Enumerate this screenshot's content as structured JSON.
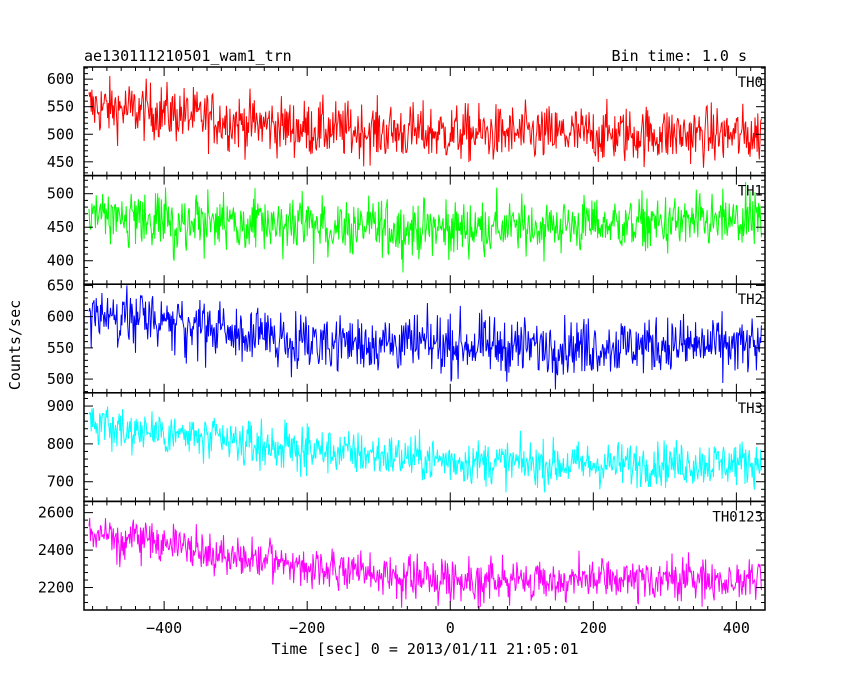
{
  "header": {
    "left": "ae130111210501_wam1_trn",
    "right": "Bin time: 1.0 s"
  },
  "chart_data": {
    "type": "line",
    "title": "ae130111210501_wam1_trn",
    "subtitle": "Bin time: 1.0 s",
    "xlabel": "Time [sec] 0 = 2013/01/11 21:05:01",
    "ylabel": "Counts/sec",
    "xlim": [
      -512,
      440
    ],
    "x_ticks": [
      -400,
      -200,
      0,
      200,
      400
    ],
    "x_tick_labels": [
      "−400",
      "−200",
      "0",
      "200",
      "400"
    ],
    "x_data_range": [
      -505,
      435
    ],
    "bin_time_s": 1.0,
    "grid": false,
    "panels": [
      {
        "name": "TH0",
        "color": "#ff0000",
        "ylim": [
          425,
          622
        ],
        "y_ticks": [
          450,
          500,
          550,
          600
        ],
        "y_tick_labels": [
          "450",
          "500",
          "550",
          "600"
        ],
        "trend": [
          [
            -505,
            550
          ],
          [
            -400,
            540
          ],
          [
            -300,
            522
          ],
          [
            -200,
            510
          ],
          [
            -100,
            505
          ],
          [
            0,
            502
          ],
          [
            100,
            500
          ],
          [
            200,
            500
          ],
          [
            300,
            500
          ],
          [
            435,
            498
          ]
        ],
        "noise": 26
      },
      {
        "name": "TH1",
        "color": "#00ff00",
        "ylim": [
          365,
          527
        ],
        "y_ticks": [
          400,
          450,
          500
        ],
        "y_tick_labels": [
          "400",
          "450",
          "500"
        ],
        "trend": [
          [
            -505,
            462
          ],
          [
            -400,
            458
          ],
          [
            -300,
            455
          ],
          [
            -200,
            452
          ],
          [
            -100,
            448
          ],
          [
            0,
            448
          ],
          [
            100,
            450
          ],
          [
            200,
            455
          ],
          [
            300,
            455
          ],
          [
            435,
            458
          ]
        ],
        "noise": 21
      },
      {
        "name": "TH2",
        "color": "#0000ff",
        "ylim": [
          478,
          652
        ],
        "y_ticks": [
          500,
          550,
          600,
          650
        ],
        "y_tick_labels": [
          "500",
          "550",
          "600",
          "650"
        ],
        "trend": [
          [
            -505,
            605
          ],
          [
            -400,
            592
          ],
          [
            -300,
            572
          ],
          [
            -200,
            562
          ],
          [
            -100,
            558
          ],
          [
            0,
            555
          ],
          [
            100,
            552
          ],
          [
            200,
            552
          ],
          [
            300,
            555
          ],
          [
            435,
            552
          ]
        ],
        "noise": 23
      },
      {
        "name": "TH3",
        "color": "#00ffff",
        "ylim": [
          648,
          935
        ],
        "y_ticks": [
          700,
          800,
          900
        ],
        "y_tick_labels": [
          "700",
          "800",
          "900"
        ],
        "trend": [
          [
            -505,
            850
          ],
          [
            -400,
            830
          ],
          [
            -300,
            800
          ],
          [
            -200,
            785
          ],
          [
            -100,
            770
          ],
          [
            0,
            755
          ],
          [
            100,
            748
          ],
          [
            200,
            745
          ],
          [
            300,
            748
          ],
          [
            435,
            750
          ]
        ],
        "noise": 30
      },
      {
        "name": "TH0123",
        "color": "#ff00ff",
        "ylim": [
          2080,
          2660
        ],
        "y_ticks": [
          2200,
          2400,
          2600
        ],
        "y_tick_labels": [
          "2200",
          "2400",
          "2600"
        ],
        "trend": [
          [
            -505,
            2490
          ],
          [
            -400,
            2440
          ],
          [
            -300,
            2360
          ],
          [
            -200,
            2310
          ],
          [
            -100,
            2265
          ],
          [
            0,
            2245
          ],
          [
            100,
            2235
          ],
          [
            200,
            2240
          ],
          [
            300,
            2245
          ],
          [
            435,
            2235
          ]
        ],
        "noise": 55
      }
    ]
  }
}
